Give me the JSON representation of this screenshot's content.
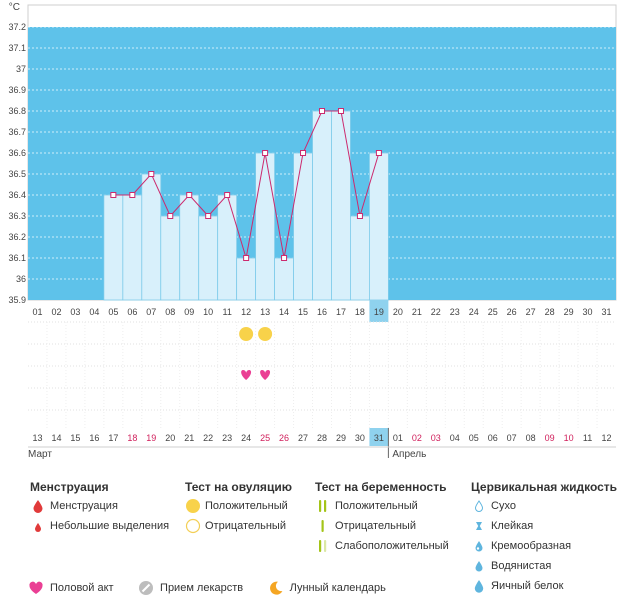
{
  "chart_data": {
    "type": "line",
    "unit_label": "°C",
    "y_ticks": [
      "35.9",
      "36",
      "36.1",
      "36.2",
      "36.3",
      "36.4",
      "36.5",
      "36.6",
      "36.7",
      "36.8",
      "36.9",
      "37",
      "37.1",
      "37.2"
    ],
    "ylim": [
      35.9,
      37.2
    ],
    "x_labels": [
      "01",
      "02",
      "03",
      "04",
      "05",
      "06",
      "07",
      "08",
      "09",
      "10",
      "11",
      "12",
      "13",
      "14",
      "15",
      "16",
      "17",
      "18",
      "19",
      "20",
      "21",
      "22",
      "23",
      "24",
      "25",
      "26",
      "27",
      "28",
      "29",
      "30",
      "31"
    ],
    "highlight_index": 18,
    "series": [
      {
        "values": [
          null,
          null,
          null,
          null,
          36.4,
          36.4,
          36.5,
          36.3,
          36.4,
          36.3,
          36.4,
          36.1,
          36.6,
          36.1,
          36.6,
          36.8,
          36.8,
          36.3,
          36.6,
          null,
          null,
          null,
          null,
          null,
          null,
          null,
          null,
          null,
          null,
          null,
          null
        ]
      }
    ],
    "dates": [
      "13",
      "14",
      "15",
      "16",
      "17",
      "18",
      "19",
      "20",
      "21",
      "22",
      "23",
      "24",
      "25",
      "26",
      "27",
      "28",
      "29",
      "30",
      "31",
      "01",
      "02",
      "03",
      "04",
      "05",
      "06",
      "07",
      "08",
      "09",
      "10",
      "11",
      "12"
    ],
    "weekend_indices": [
      5,
      6,
      12,
      13,
      20,
      21,
      27,
      28
    ],
    "date_highlight_index": 18,
    "months": [
      {
        "label": "Март",
        "start_index": 0
      },
      {
        "label": "Апрель",
        "start_index": 19
      }
    ],
    "ovulation_positive_indices": [
      11,
      12
    ],
    "intercourse_indices": [
      11,
      12
    ],
    "colors": {
      "sky": "#5ec2ea",
      "bar": "#d8f0fb",
      "bar_border": "#7ecbea",
      "line": "#cc2a6e",
      "highlight": "#8fd2ee",
      "weekend_red": "#d01f5b",
      "heart": "#ea3f94",
      "ovulation": "#f8d24a"
    }
  },
  "legend": {
    "menstruation": {
      "title": "Менструация",
      "items": [
        {
          "label": "Менструация",
          "icon": "blood-drop-icon"
        },
        {
          "label": "Небольшие выделения",
          "icon": "small-drop-icon"
        }
      ]
    },
    "ovulation_test": {
      "title": "Тест на овуляцию",
      "items": [
        {
          "label": "Положительный",
          "icon": "filled-circle-icon"
        },
        {
          "label": "Отрицательный",
          "icon": "outline-circle-icon"
        }
      ]
    },
    "pregnancy_test": {
      "title": "Тест на беременность",
      "items": [
        {
          "label": "Положительный",
          "icon": "two-lines-icon"
        },
        {
          "label": "Отрицательный",
          "icon": "one-line-icon"
        },
        {
          "label": "Слабоположительный",
          "icon": "faint-lines-icon"
        }
      ]
    },
    "cervical": {
      "title": "Цервикальная жидкость",
      "items": [
        {
          "label": "Сухо",
          "icon": "dry-drop-icon"
        },
        {
          "label": "Клейкая",
          "icon": "sticky-icon"
        },
        {
          "label": "Кремообразная",
          "icon": "creamy-drop-icon"
        },
        {
          "label": "Водянистая",
          "icon": "watery-drop-icon"
        },
        {
          "label": "Яичный белок",
          "icon": "egg-white-drop-icon"
        }
      ]
    },
    "bottom": [
      {
        "label": "Половой акт",
        "icon": "heart-icon"
      },
      {
        "label": "Прием лекарств",
        "icon": "pill-icon"
      },
      {
        "label": "Лунный календарь",
        "icon": "moon-icon"
      }
    ]
  }
}
